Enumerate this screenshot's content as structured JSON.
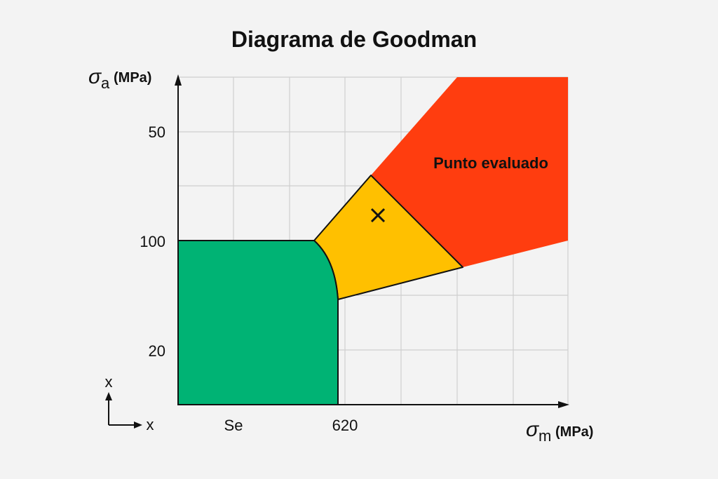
{
  "title": "Diagrama de Goodman",
  "y_axis": {
    "symbol": "σ",
    "subscript": "a",
    "unit": "(MPa)",
    "labels": [
      "50",
      "100",
      "20"
    ]
  },
  "x_axis": {
    "symbol": "σ",
    "subscript": "m",
    "unit": "(MPa)",
    "labels": [
      "Se",
      "620"
    ]
  },
  "region_label": "Punto evaluado",
  "orientation": {
    "vertical": "x",
    "horizontal": "x"
  }
}
